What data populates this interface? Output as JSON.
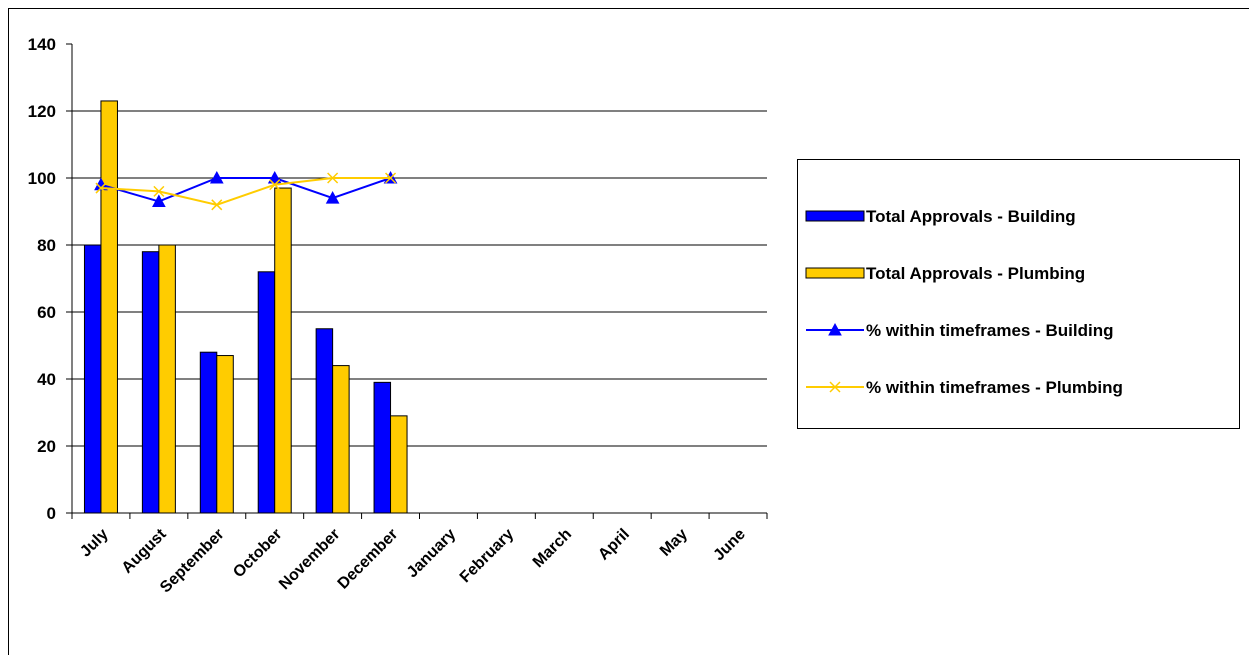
{
  "chart_data": {
    "type": "bar",
    "categories": [
      "July",
      "August",
      "September",
      "October",
      "November",
      "December",
      "January",
      "February",
      "March",
      "April",
      "May",
      "June"
    ],
    "series": [
      {
        "name": "Total Approvals - Building",
        "type": "bar",
        "color": "#0000ff",
        "values": [
          80,
          78,
          48,
          72,
          55,
          39,
          null,
          null,
          null,
          null,
          null,
          null
        ]
      },
      {
        "name": "Total Approvals - Plumbing",
        "type": "bar",
        "color": "#ffcc00",
        "values": [
          123,
          80,
          47,
          97,
          44,
          29,
          null,
          null,
          null,
          null,
          null,
          null
        ]
      },
      {
        "name": "% within timeframes - Building",
        "type": "line",
        "marker": "triangle",
        "color": "#0000ff",
        "values": [
          98,
          93,
          100,
          100,
          94,
          100,
          null,
          null,
          null,
          null,
          null,
          null
        ]
      },
      {
        "name": "% within timeframes - Plumbing",
        "type": "line",
        "marker": "x",
        "color": "#ffcc00",
        "values": [
          97,
          96,
          92,
          98,
          100,
          100,
          null,
          null,
          null,
          null,
          null,
          null
        ]
      }
    ],
    "ylim": [
      0,
      140
    ],
    "yticks": [
      0,
      20,
      40,
      60,
      80,
      100,
      120,
      140
    ],
    "grid": true,
    "legend": "right"
  }
}
